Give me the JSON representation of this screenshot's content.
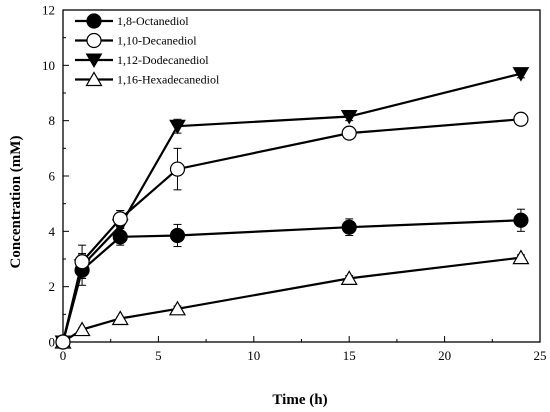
{
  "chart_data": {
    "type": "line",
    "xlabel": "Time (h)",
    "ylabel": "Concentration (mM)",
    "xlim": [
      0,
      25
    ],
    "ylim": [
      0,
      12
    ],
    "xticks": [
      0,
      5,
      10,
      15,
      20,
      25
    ],
    "yticks": [
      0,
      2,
      4,
      6,
      8,
      10,
      12
    ],
    "x": [
      0,
      1,
      3,
      6,
      15,
      24
    ],
    "grid": false,
    "legend_position": "top-left",
    "series": [
      {
        "name": "1,8-Octanediol",
        "marker": "circle-filled",
        "values": [
          0,
          2.6,
          3.8,
          3.85,
          4.15,
          4.4
        ],
        "errors": [
          0,
          0.55,
          0.3,
          0.4,
          0.3,
          0.4
        ]
      },
      {
        "name": "1,10-Decanediol",
        "marker": "circle-open",
        "values": [
          0,
          2.9,
          4.45,
          6.25,
          7.55,
          8.05
        ],
        "errors": [
          0,
          0.6,
          0.3,
          0.75,
          0.2,
          0.15
        ]
      },
      {
        "name": "1,12-Dodecanediol",
        "marker": "triangle-down-filled",
        "values": [
          0,
          2.75,
          4.2,
          7.8,
          8.15,
          9.7
        ],
        "errors": [
          0,
          0.45,
          0.55,
          0.25,
          0.15,
          0.15
        ]
      },
      {
        "name": "1,16-Hexadecanediol",
        "marker": "triangle-up-open",
        "values": [
          0,
          0.45,
          0.85,
          1.2,
          2.3,
          3.05
        ],
        "errors": [
          0,
          0.05,
          0.05,
          0.1,
          0.1,
          0.1
        ]
      }
    ]
  }
}
